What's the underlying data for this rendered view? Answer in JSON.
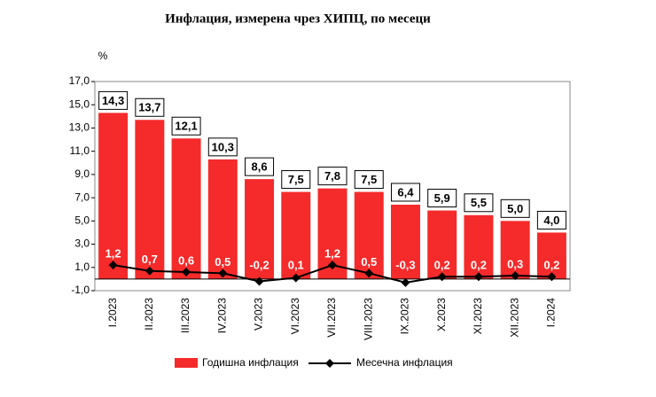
{
  "chart_data": {
    "type": "bar",
    "title": "Инфлация, измерена чрез ХИПЦ, по месеци",
    "y_label": "%",
    "categories": [
      "I.2023",
      "II.2023",
      "III.2023",
      "IV.2023",
      "V.2023",
      "VI.2023",
      "VII.2023",
      "VIII.2023",
      "IX.2023",
      "X.2023",
      "XI.2023",
      "XII.2023",
      "I.2024"
    ],
    "series": [
      {
        "name": "Годишна инфлация",
        "type": "bar",
        "color": "#f52a2a",
        "values": [
          14.3,
          13.7,
          12.1,
          10.3,
          8.6,
          7.5,
          7.8,
          7.5,
          6.4,
          5.9,
          5.5,
          5.0,
          4.0
        ],
        "value_labels": [
          "14,3",
          "13,7",
          "12,1",
          "10,3",
          "8,6",
          "7,5",
          "7,8",
          "7,5",
          "6,4",
          "5,9",
          "5,5",
          "5,0",
          "4,0"
        ]
      },
      {
        "name": "Месечна инфлация",
        "type": "line",
        "color": "#000000",
        "values": [
          1.2,
          0.7,
          0.6,
          0.5,
          -0.2,
          0.1,
          1.2,
          0.5,
          -0.3,
          0.2,
          0.2,
          0.3,
          0.2
        ],
        "value_labels": [
          "1,2",
          "0,7",
          "0,6",
          "0,5",
          "-0,2",
          "0,1",
          "1,2",
          "0,5",
          "-0,3",
          "0,2",
          "0,2",
          "0,3",
          "0,2"
        ]
      }
    ],
    "ylim": [
      -1.0,
      17.0
    ],
    "yticks": [
      {
        "value": -1.0,
        "label": "-1,0"
      },
      {
        "value": 1.0,
        "label": "1,0"
      },
      {
        "value": 3.0,
        "label": "3,0"
      },
      {
        "value": 5.0,
        "label": "5,0"
      },
      {
        "value": 7.0,
        "label": "7,0"
      },
      {
        "value": 9.0,
        "label": "9,0"
      },
      {
        "value": 11.0,
        "label": "11,0"
      },
      {
        "value": 13.0,
        "label": "13,0"
      },
      {
        "value": 15.0,
        "label": "15,0"
      },
      {
        "value": 17.0,
        "label": "17,0"
      }
    ],
    "grid": false
  }
}
